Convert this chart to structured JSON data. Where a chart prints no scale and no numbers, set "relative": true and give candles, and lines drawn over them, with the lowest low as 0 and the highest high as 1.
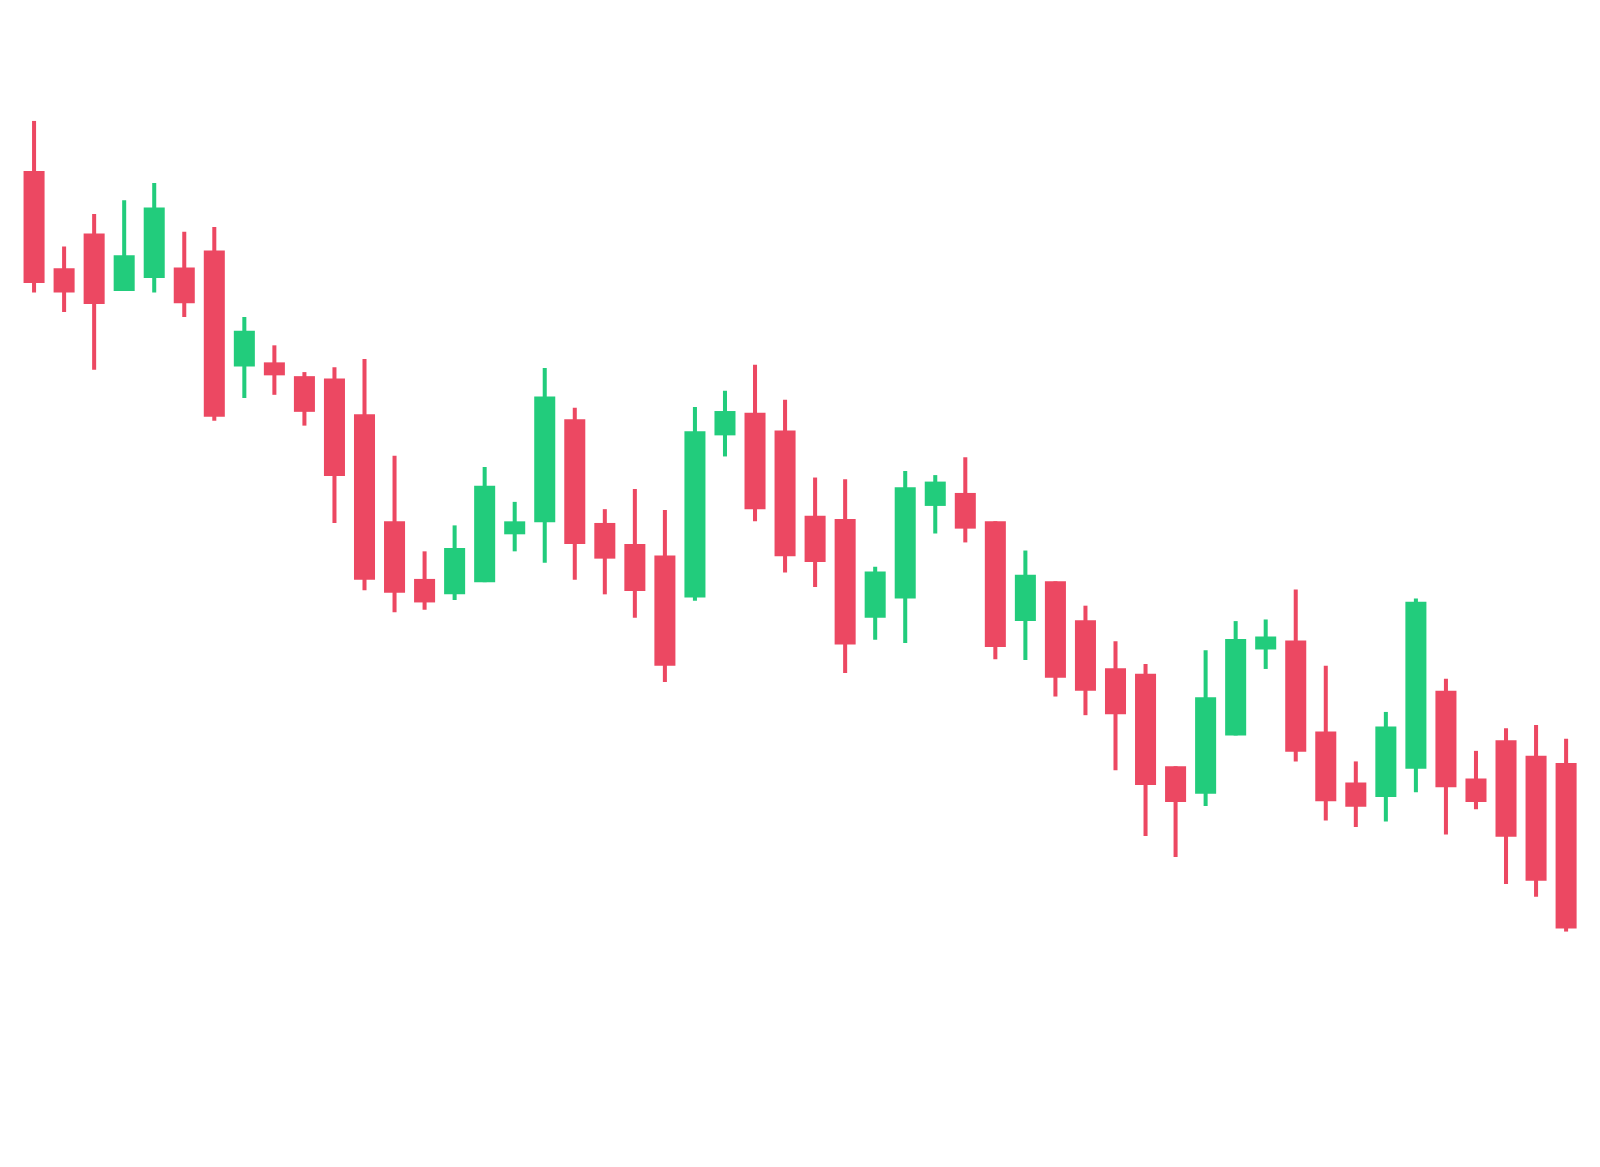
{
  "chart_data": {
    "type": "candlestick",
    "relative": true,
    "categories": [
      null,
      null,
      null,
      null,
      null,
      null,
      null,
      null,
      null,
      null,
      null,
      null,
      null,
      null,
      null,
      null,
      null,
      null,
      null,
      null,
      null,
      null,
      null,
      null,
      null,
      null,
      null,
      null,
      null,
      null,
      null,
      null,
      null,
      null,
      null,
      null,
      null,
      null,
      null,
      null,
      null,
      null,
      null,
      null,
      null,
      null,
      null,
      null,
      null,
      null,
      null,
      null
    ],
    "ohlc": [
      [
        0.938,
        1.0,
        0.788,
        0.8
      ],
      [
        0.818,
        0.845,
        0.764,
        0.788
      ],
      [
        0.861,
        0.885,
        0.693,
        0.774
      ],
      [
        0.79,
        0.902,
        0.79,
        0.834
      ],
      [
        0.806,
        0.923,
        0.788,
        0.893
      ],
      [
        0.819,
        0.863,
        0.758,
        0.775
      ],
      [
        0.84,
        0.869,
        0.63,
        0.635
      ],
      [
        0.697,
        0.758,
        0.658,
        0.741
      ],
      [
        0.702,
        0.723,
        0.662,
        0.686
      ],
      [
        0.685,
        0.69,
        0.624,
        0.641
      ],
      [
        0.682,
        0.696,
        0.504,
        0.562
      ],
      [
        0.638,
        0.706,
        0.421,
        0.434
      ],
      [
        0.506,
        0.587,
        0.394,
        0.418
      ],
      [
        0.435,
        0.469,
        0.397,
        0.406
      ],
      [
        0.416,
        0.501,
        0.409,
        0.473
      ],
      [
        0.431,
        0.573,
        0.431,
        0.55
      ],
      [
        0.49,
        0.53,
        0.469,
        0.506
      ],
      [
        0.505,
        0.695,
        0.455,
        0.66
      ],
      [
        0.632,
        0.646,
        0.434,
        0.478
      ],
      [
        0.504,
        0.521,
        0.416,
        0.46
      ],
      [
        0.478,
        0.546,
        0.387,
        0.42
      ],
      [
        0.464,
        0.52,
        0.308,
        0.328
      ],
      [
        0.412,
        0.647,
        0.408,
        0.617
      ],
      [
        0.612,
        0.667,
        0.586,
        0.642
      ],
      [
        0.64,
        0.699,
        0.506,
        0.521
      ],
      [
        0.618,
        0.656,
        0.443,
        0.463
      ],
      [
        0.513,
        0.56,
        0.425,
        0.456
      ],
      [
        0.509,
        0.558,
        0.319,
        0.354
      ],
      [
        0.387,
        0.45,
        0.36,
        0.444
      ],
      [
        0.411,
        0.568,
        0.356,
        0.548
      ],
      [
        0.525,
        0.563,
        0.491,
        0.555
      ],
      [
        0.541,
        0.585,
        0.48,
        0.497
      ],
      [
        0.506,
        0.506,
        0.336,
        0.351
      ],
      [
        0.383,
        0.47,
        0.335,
        0.44
      ],
      [
        0.432,
        0.432,
        0.29,
        0.313
      ],
      [
        0.384,
        0.402,
        0.267,
        0.297
      ],
      [
        0.325,
        0.358,
        0.199,
        0.268
      ],
      [
        0.318,
        0.33,
        0.118,
        0.181
      ],
      [
        0.204,
        0.204,
        0.092,
        0.16
      ],
      [
        0.17,
        0.347,
        0.155,
        0.289
      ],
      [
        0.242,
        0.383,
        0.242,
        0.361
      ],
      [
        0.348,
        0.385,
        0.324,
        0.364
      ],
      [
        0.359,
        0.422,
        0.21,
        0.222
      ],
      [
        0.247,
        0.328,
        0.137,
        0.161
      ],
      [
        0.184,
        0.21,
        0.129,
        0.154
      ],
      [
        0.166,
        0.271,
        0.136,
        0.253
      ],
      [
        0.201,
        0.411,
        0.172,
        0.407
      ],
      [
        0.297,
        0.312,
        0.12,
        0.178
      ],
      [
        0.189,
        0.223,
        0.151,
        0.16
      ],
      [
        0.236,
        0.251,
        0.059,
        0.117
      ],
      [
        0.217,
        0.255,
        0.043,
        0.063
      ],
      [
        0.208,
        0.238,
        0.0,
        0.004
      ]
    ],
    "colors": [
      "#ec4862",
      "#ec4862",
      "#ec4862",
      "#22cc7c",
      "#22cc7c",
      "#ec4862",
      "#ec4862",
      "#22cc7c",
      "#ec4862",
      "#ec4862",
      "#ec4862",
      "#ec4862",
      "#ec4862",
      "#ec4862",
      "#22cc7c",
      "#22cc7c",
      "#22cc7c",
      "#22cc7c",
      "#ec4862",
      "#ec4862",
      "#ec4862",
      "#ec4862",
      "#22cc7c",
      "#22cc7c",
      "#ec4862",
      "#ec4862",
      "#ec4862",
      "#ec4862",
      "#22cc7c",
      "#22cc7c",
      "#22cc7c",
      "#ec4862",
      "#ec4862",
      "#22cc7c",
      "#ec4862",
      "#ec4862",
      "#ec4862",
      "#ec4862",
      "#ec4862",
      "#22cc7c",
      "#22cc7c",
      "#22cc7c",
      "#ec4862",
      "#ec4862",
      "#ec4862",
      "#22cc7c",
      "#22cc7c",
      "#ec4862",
      "#ec4862",
      "#ec4862",
      "#ec4862",
      "#ec4862"
    ]
  }
}
